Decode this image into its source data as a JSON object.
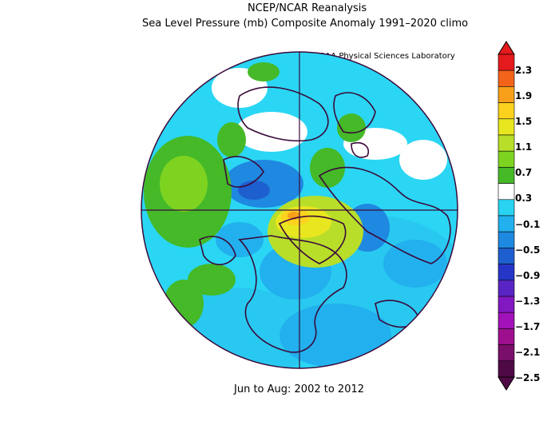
{
  "title_line1": "NCEP/NCAR Reanalysis",
  "title_line2": "Sea Level Pressure (mb) Composite Anomaly 1991–2020 climo",
  "credit": "NOAA Physical Sciences Laboratory",
  "period": "Jun to Aug: 2002 to 2012",
  "colorbar": {
    "labels": [
      "2.3",
      "1.9",
      "1.5",
      "1.1",
      "0.7",
      "0.3",
      "−0.1",
      "−0.5",
      "−0.9",
      "−1.3",
      "−1.7",
      "−2.1",
      "−2.5"
    ],
    "colors_top_to_bottom": [
      "#e41a1c",
      "#f2641a",
      "#f9a01b",
      "#fcd21f",
      "#e8e61f",
      "#b8de2a",
      "#7ed321",
      "#45b928",
      "#ffffff",
      "#29d3f2",
      "#22b0ee",
      "#1f88e0",
      "#1e5fd0",
      "#2535c7",
      "#5a24c4",
      "#8218c2",
      "#a112b8",
      "#9e0f8e",
      "#7a0f6a",
      "#4f0a45"
    ]
  },
  "map": {
    "projection": "north polar stereographic",
    "land_outline_color": "#3a0a3a"
  }
}
